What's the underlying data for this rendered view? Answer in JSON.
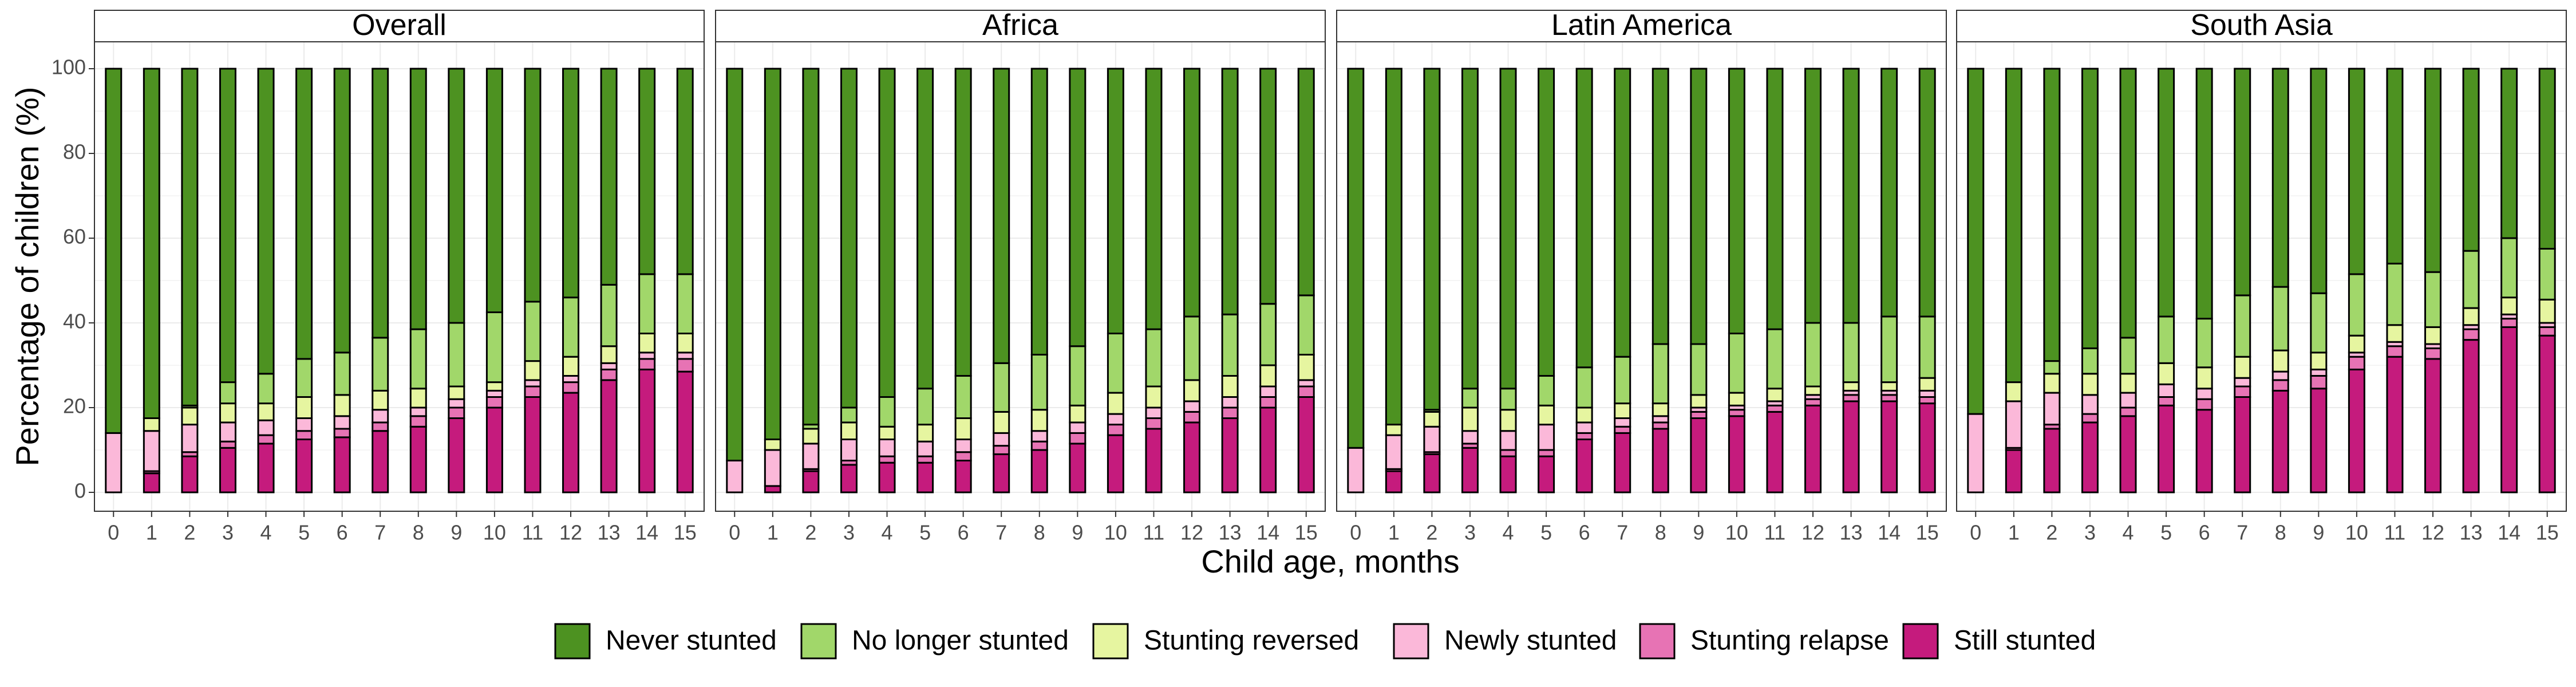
{
  "chart_data": {
    "type": "bar",
    "stacked": true,
    "xlabel": "Child age, months",
    "ylabel": "Percentage of children (%)",
    "ylim": [
      0,
      100
    ],
    "yticks": [
      0,
      20,
      40,
      60,
      80,
      100
    ],
    "grid": true,
    "legend_position": "bottom",
    "categories": [
      "0",
      "1",
      "2",
      "3",
      "4",
      "5",
      "6",
      "7",
      "8",
      "9",
      "10",
      "11",
      "12",
      "13",
      "14",
      "15"
    ],
    "series_order": [
      "Still stunted",
      "Stunting relapse",
      "Newly stunted",
      "Stunting reversed",
      "No longer stunted",
      "Never stunted"
    ],
    "legend_order": [
      "Never stunted",
      "No longer stunted",
      "Stunting reversed",
      "Newly stunted",
      "Stunting relapse",
      "Still stunted"
    ],
    "colors": {
      "Never stunted": "#4d9221",
      "No longer stunted": "#a1d76a",
      "Stunting reversed": "#e6f5a0",
      "Newly stunted": "#fbb8d9",
      "Stunting relapse": "#e773b4",
      "Still stunted": "#c51b7d"
    },
    "panels": [
      {
        "title": "Overall",
        "series": [
          {
            "name": "Still stunted",
            "values": [
              0,
              4.5,
              8.5,
              10.5,
              11.5,
              12.5,
              13,
              14.5,
              15.5,
              17.5,
              20,
              22.5,
              23.5,
              26.5,
              29,
              28.5
            ]
          },
          {
            "name": "Stunting relapse",
            "values": [
              0,
              0.5,
              1,
              1.5,
              2,
              2,
              2,
              2,
              2.5,
              2.5,
              2.5,
              2.5,
              2.5,
              2.5,
              2.5,
              3
            ]
          },
          {
            "name": "Newly stunted",
            "values": [
              14,
              9.5,
              6.5,
              4.5,
              3.5,
              3,
              3,
              3,
              2,
              2,
              1.5,
              1.5,
              1.5,
              1.5,
              1.5,
              1.5
            ]
          },
          {
            "name": "Stunting reversed",
            "values": [
              0,
              3,
              4,
              4.5,
              4,
              5,
              5,
              4.5,
              4.5,
              3,
              2,
              4.5,
              4.5,
              4,
              4.5,
              4.5
            ]
          },
          {
            "name": "No longer stunted",
            "values": [
              0,
              0,
              0.5,
              5,
              7,
              9,
              10,
              12.5,
              14,
              15,
              16.5,
              14,
              14,
              14.5,
              14,
              14
            ]
          },
          {
            "name": "Never stunted",
            "values": [
              86,
              82.5,
              79.5,
              74,
              72,
              68.5,
              67,
              63.5,
              61.5,
              60,
              57.5,
              55,
              54,
              51,
              48.5,
              48.5
            ]
          }
        ]
      },
      {
        "title": "Africa",
        "series": [
          {
            "name": "Still stunted",
            "values": [
              0,
              1.5,
              5,
              6.5,
              7,
              7,
              7.5,
              9,
              10,
              11.5,
              13.5,
              15,
              16.5,
              17.5,
              20,
              22.5
            ]
          },
          {
            "name": "Stunting relapse",
            "values": [
              0,
              0,
              0.5,
              1,
              1.5,
              1.5,
              2,
              2,
              2,
              2.5,
              2.5,
              2.5,
              2.5,
              2.5,
              2.5,
              2.5
            ]
          },
          {
            "name": "Newly stunted",
            "values": [
              7.5,
              8.5,
              6,
              5,
              4,
              3.5,
              3,
              3,
              2.5,
              2.5,
              2.5,
              2.5,
              2.5,
              2.5,
              2.5,
              1.5
            ]
          },
          {
            "name": "Stunting reversed",
            "values": [
              0,
              2.5,
              3.5,
              4,
              3,
              4,
              5,
              5,
              5,
              4,
              5,
              5,
              5,
              5,
              5,
              6
            ]
          },
          {
            "name": "No longer stunted",
            "values": [
              0,
              0,
              1,
              3.5,
              7,
              8.5,
              10,
              11.5,
              13,
              14,
              14,
              13.5,
              15,
              14.5,
              14.5,
              14
            ]
          },
          {
            "name": "Never stunted",
            "values": [
              92.5,
              87.5,
              84,
              80,
              77.5,
              75.5,
              72.5,
              69.5,
              67.5,
              65.5,
              62.5,
              61.5,
              58.5,
              58,
              55.5,
              53.5
            ]
          }
        ]
      },
      {
        "title": "Latin America",
        "series": [
          {
            "name": "Still stunted",
            "values": [
              0,
              5,
              9,
              10.5,
              8.5,
              8.5,
              12.5,
              14,
              15,
              17.5,
              18,
              19,
              20.5,
              21.5,
              21.5,
              21
            ]
          },
          {
            "name": "Stunting relapse",
            "values": [
              0,
              0.5,
              0.5,
              1,
              1.5,
              1.5,
              1.5,
              1.5,
              1.5,
              1.5,
              1.5,
              1.5,
              1.5,
              1.5,
              1.5,
              1.5
            ]
          },
          {
            "name": "Newly stunted",
            "values": [
              10.5,
              8,
              6,
              3,
              4.5,
              6,
              2.5,
              2,
              1.5,
              1,
              1,
              1,
              1,
              1,
              1,
              1.5
            ]
          },
          {
            "name": "Stunting reversed",
            "values": [
              0,
              2.5,
              3.5,
              5.5,
              5,
              4.5,
              3.5,
              3.5,
              3,
              3,
              3,
              3,
              2,
              2,
              2,
              3
            ]
          },
          {
            "name": "No longer stunted",
            "values": [
              0,
              0,
              0.5,
              4.5,
              5,
              7,
              9.5,
              11,
              14,
              12,
              14,
              14,
              15,
              14,
              15.5,
              14.5
            ]
          },
          {
            "name": "Never stunted",
            "values": [
              89.5,
              84,
              80.5,
              75.5,
              75.5,
              72.5,
              70.5,
              68,
              65,
              65,
              62.5,
              61.5,
              60,
              60,
              58.5,
              58.5
            ]
          }
        ]
      },
      {
        "title": "South Asia",
        "series": [
          {
            "name": "Still stunted",
            "values": [
              0,
              10,
              15,
              16.5,
              18,
              20.5,
              19.5,
              22.5,
              24,
              24.5,
              29,
              32,
              31.5,
              36,
              39,
              37
            ]
          },
          {
            "name": "Stunting relapse",
            "values": [
              0,
              0.5,
              1,
              2,
              2,
              2,
              2.5,
              2.5,
              2.5,
              3,
              3,
              2.5,
              2.5,
              2.5,
              2,
              2
            ]
          },
          {
            "name": "Newly stunted",
            "values": [
              18.5,
              11,
              7.5,
              4.5,
              3.5,
              3,
              2.5,
              2,
              2,
              1.5,
              1,
              1,
              1,
              1,
              1,
              1
            ]
          },
          {
            "name": "Stunting reversed",
            "values": [
              0,
              4.5,
              4.5,
              5,
              4.5,
              5,
              5,
              5,
              5,
              4,
              4,
              4,
              4,
              4,
              4,
              5.5
            ]
          },
          {
            "name": "No longer stunted",
            "values": [
              0,
              0,
              3,
              6,
              8.5,
              11,
              11.5,
              14.5,
              15,
              14,
              14.5,
              14.5,
              13,
              13.5,
              14,
              12
            ]
          },
          {
            "name": "Never stunted",
            "values": [
              81.5,
              74,
              69,
              66,
              63.5,
              58.5,
              59,
              53.5,
              51.5,
              53,
              48.5,
              46,
              48,
              43,
              40,
              42.5
            ]
          }
        ]
      }
    ]
  }
}
